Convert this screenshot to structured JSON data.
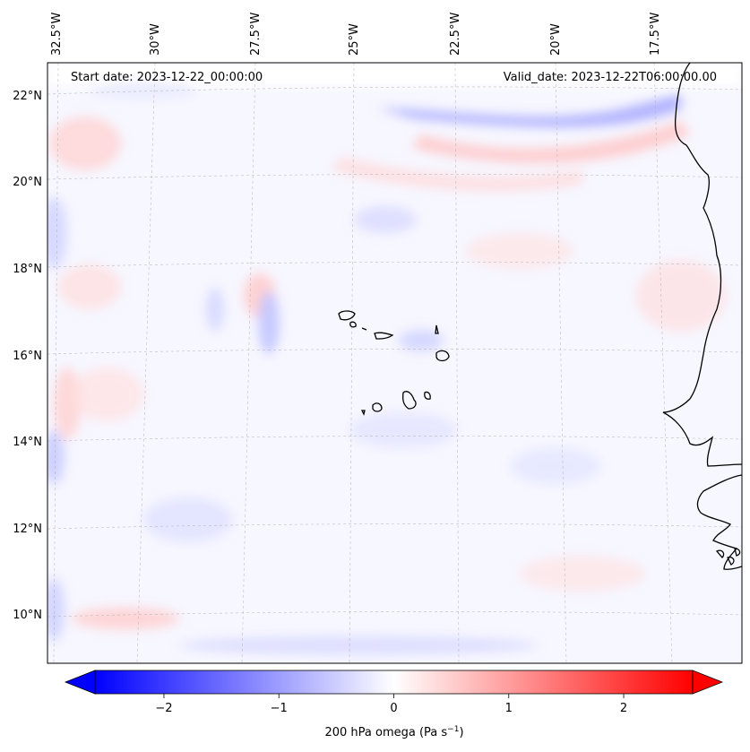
{
  "map": {
    "start_date": "Start date: 2023-12-22_00:00:00",
    "valid_date": "Valid_date: 2023-12-22T06:00:00.00",
    "lon_labels": [
      "32.5°W",
      "30°W",
      "27.5°W",
      "25°W",
      "22.5°W",
      "20°W",
      "17.5°W"
    ],
    "lat_labels": [
      "22°N",
      "20°N",
      "18°N",
      "16°N",
      "14°N",
      "12°N",
      "10°N"
    ],
    "gridlines": true,
    "coastline_color": "#000000",
    "field_colors": {
      "negative": "#0000ff",
      "zero": "#ffffff",
      "positive": "#ff0000"
    }
  },
  "colorbar": {
    "label_main": "200 hPa omega (Pa s",
    "label_exp": "−1",
    "label_close": ")",
    "tick_labels": [
      "−2",
      "−1",
      "0",
      "1",
      "2"
    ],
    "ticks": [
      -2,
      -1,
      0,
      1,
      2
    ],
    "range": [
      -2.6,
      2.6
    ],
    "extend": "both",
    "colormap": "bwr"
  }
}
